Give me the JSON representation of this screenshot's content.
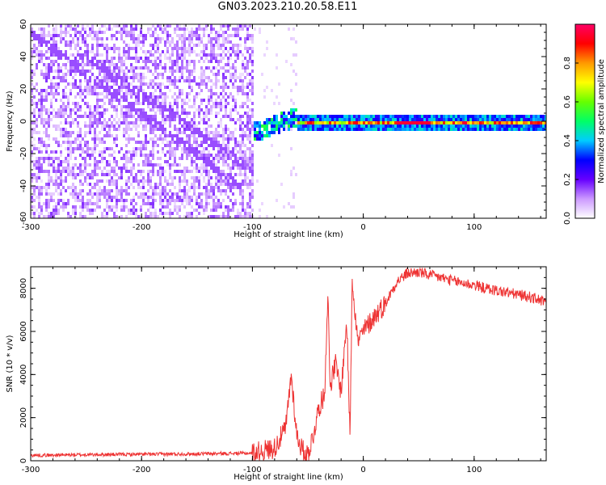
{
  "page_title": "GN03.2023.210.20.58.E11",
  "colors": {
    "background": "#ffffff",
    "snr_line": "#ee3333",
    "axis": "#000000"
  },
  "chart_data": [
    {
      "type": "heatmap",
      "title": "",
      "xlabel": "Height of straight line (km)",
      "ylabel": "Frequency (Hz)",
      "xlim": [
        -300,
        165
      ],
      "ylim": [
        -60,
        60
      ],
      "xticks": [
        -300,
        -200,
        -100,
        0,
        100
      ],
      "yticks": [
        -60,
        -40,
        -20,
        0,
        20,
        40,
        60
      ],
      "colorbar": {
        "label": "Normalized spectral amplitude",
        "range": [
          0,
          1
        ],
        "ticks": [
          "0.0",
          "0.2",
          "0.4",
          "0.6",
          "0.8"
        ],
        "tick_values": [
          0,
          0.2,
          0.4,
          0.6,
          0.8
        ],
        "colormap": [
          "#ffffff",
          "#cc99ff",
          "#6600ff",
          "#0000ff",
          "#00ccff",
          "#00ff66",
          "#66ff00",
          "#ffff00",
          "#ff9900",
          "#ff0000",
          "#ff0066"
        ]
      },
      "features": {
        "noise_region_x": [
          -300,
          -100
        ],
        "noise_amplitude_range": [
          0.0,
          0.15
        ],
        "diagonal_streaks": [
          {
            "x_start": -300,
            "y_start": 55,
            "x_end": -110,
            "y_end": -40
          },
          {
            "x_start": -260,
            "y_start": 45,
            "x_end": -100,
            "y_end": -30
          }
        ],
        "transition_x": [
          -100,
          -60
        ],
        "transition_freq": [
          -10,
          10
        ],
        "tone_x": [
          -60,
          165
        ],
        "tone_freq": 0,
        "tone_peak_x": [
          30,
          60
        ]
      }
    },
    {
      "type": "line",
      "title": "",
      "xlabel": "Height of straight line (km)",
      "ylabel": "SNR (10 * v/v)",
      "xlim": [
        -300,
        165
      ],
      "ylim": [
        0,
        9000
      ],
      "xticks": [
        -300,
        -200,
        -100,
        0,
        100
      ],
      "yticks": [
        0,
        2000,
        4000,
        6000,
        8000
      ],
      "series": [
        {
          "color": "#ee3333",
          "x": [
            -300,
            -250,
            -200,
            -150,
            -100,
            -80,
            -70,
            -65,
            -60,
            -55,
            -50,
            -45,
            -40,
            -35,
            -32,
            -30,
            -25,
            -20,
            -15,
            -12,
            -10,
            -5,
            0,
            10,
            20,
            30,
            40,
            50,
            60,
            70,
            80,
            90,
            100,
            110,
            120,
            130,
            140,
            150,
            160,
            165
          ],
          "y": [
            250,
            280,
            300,
            320,
            350,
            600,
            1500,
            4000,
            1200,
            500,
            300,
            1200,
            2500,
            3000,
            7800,
            3500,
            4500,
            3200,
            6500,
            1200,
            8500,
            5500,
            6000,
            6700,
            7300,
            8300,
            8700,
            8750,
            8600,
            8500,
            8350,
            8250,
            8150,
            8000,
            7900,
            7800,
            7700,
            7600,
            7450,
            7300
          ]
        }
      ]
    }
  ]
}
